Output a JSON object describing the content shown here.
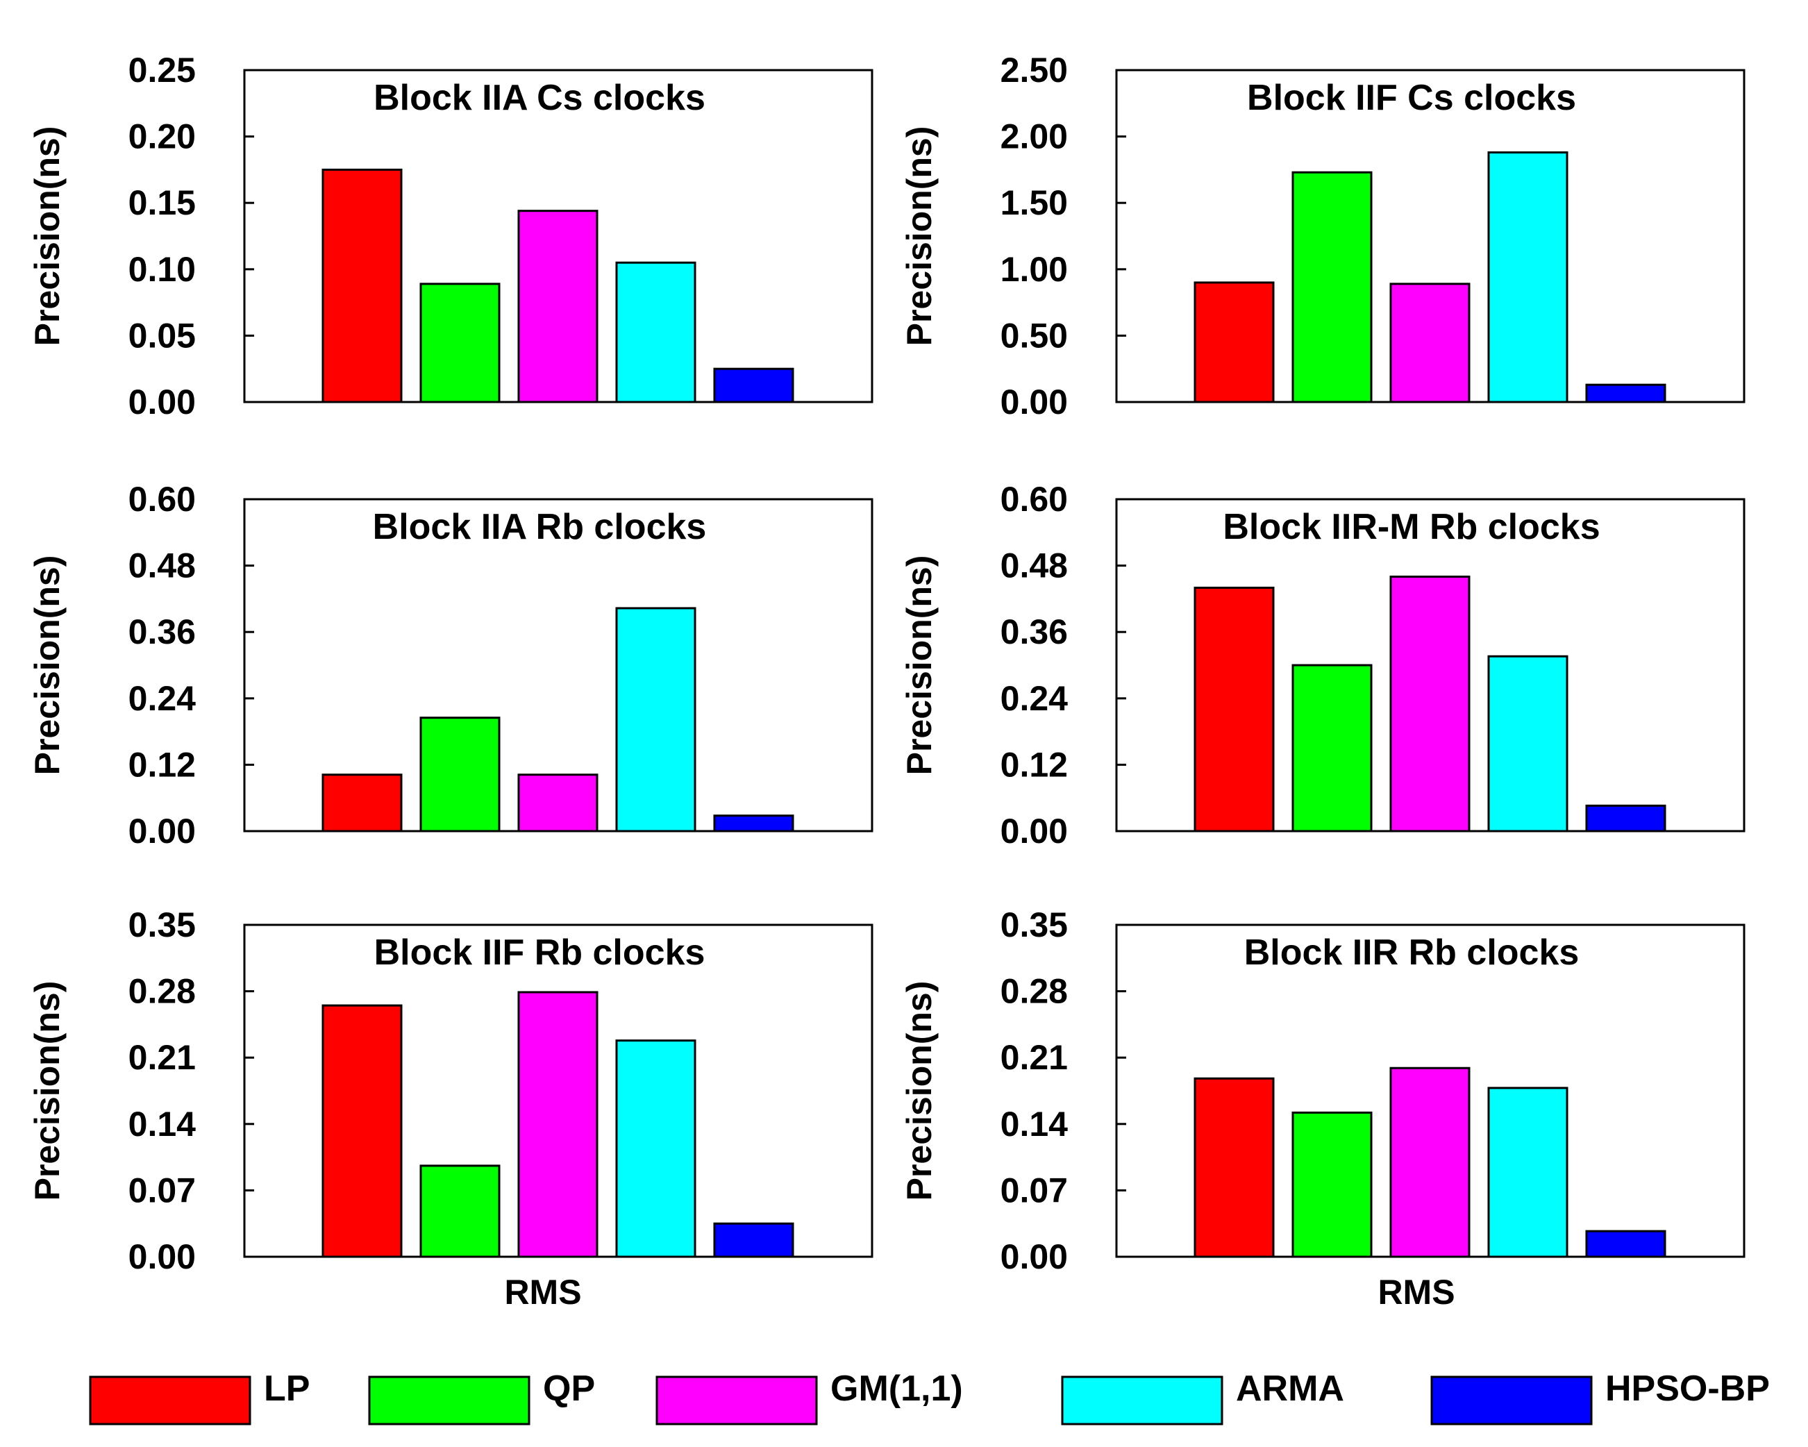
{
  "series_names": [
    "LP",
    "QP",
    "GM(1,1)",
    "ARMA",
    "HPSO-BP"
  ],
  "series_colors": [
    "#ff0000",
    "#00ff00",
    "#ff00ff",
    "#00ffff",
    "#0000ff"
  ],
  "legend": [
    "LP",
    "QP",
    "GM(1,1)",
    "ARMA",
    "HPSO-BP"
  ],
  "x_label": "RMS",
  "chart_data": [
    {
      "type": "bar",
      "title": "Block IIA Cs clocks",
      "xlabel": "",
      "ylabel": "Precision(ns)",
      "ylim": [
        0,
        0.25
      ],
      "yticks": [
        "0.00",
        "0.05",
        "0.10",
        "0.15",
        "0.20",
        "0.25"
      ],
      "categories": [
        "LP",
        "QP",
        "GM(1,1)",
        "ARMA",
        "HPSO-BP"
      ],
      "values": [
        0.175,
        0.089,
        0.144,
        0.105,
        0.025
      ]
    },
    {
      "type": "bar",
      "title": "Block IIF Cs clocks",
      "xlabel": "",
      "ylabel": "Precision(ns)",
      "ylim": [
        0,
        2.5
      ],
      "yticks": [
        "0.00",
        "0.50",
        "1.00",
        "1.50",
        "2.00",
        "2.50"
      ],
      "categories": [
        "LP",
        "QP",
        "GM(1,1)",
        "ARMA",
        "HPSO-BP"
      ],
      "values": [
        0.9,
        1.73,
        0.89,
        1.88,
        0.13
      ]
    },
    {
      "type": "bar",
      "title": "Block IIA Rb clocks",
      "xlabel": "",
      "ylabel": "Precision(ns)",
      "ylim": [
        0,
        0.6
      ],
      "yticks": [
        "0.00",
        "0.12",
        "0.24",
        "0.36",
        "0.48",
        "0.60"
      ],
      "categories": [
        "LP",
        "QP",
        "GM(1,1)",
        "ARMA",
        "HPSO-BP"
      ],
      "values": [
        0.102,
        0.205,
        0.102,
        0.403,
        0.028
      ]
    },
    {
      "type": "bar",
      "title": "Block IIR-M Rb clocks",
      "xlabel": "",
      "ylabel": "Precision(ns)",
      "ylim": [
        0,
        0.6
      ],
      "yticks": [
        "0.00",
        "0.12",
        "0.24",
        "0.36",
        "0.48",
        "0.60"
      ],
      "categories": [
        "LP",
        "QP",
        "GM(1,1)",
        "ARMA",
        "HPSO-BP"
      ],
      "values": [
        0.44,
        0.3,
        0.46,
        0.316,
        0.046
      ]
    },
    {
      "type": "bar",
      "title": "Block IIF Rb clocks",
      "xlabel": "RMS",
      "ylabel": "Precision(ns)",
      "ylim": [
        0,
        0.35
      ],
      "yticks": [
        "0.00",
        "0.07",
        "0.14",
        "0.21",
        "0.28",
        "0.35"
      ],
      "categories": [
        "LP",
        "QP",
        "GM(1,1)",
        "ARMA",
        "HPSO-BP"
      ],
      "values": [
        0.265,
        0.096,
        0.279,
        0.228,
        0.035
      ]
    },
    {
      "type": "bar",
      "title": "Block IIR Rb clocks",
      "xlabel": "RMS",
      "ylabel": "Precision(ns)",
      "ylim": [
        0,
        0.35
      ],
      "yticks": [
        "0.00",
        "0.07",
        "0.14",
        "0.21",
        "0.28",
        "0.35"
      ],
      "categories": [
        "LP",
        "QP",
        "GM(1,1)",
        "ARMA",
        "HPSO-BP"
      ],
      "values": [
        0.188,
        0.152,
        0.199,
        0.178,
        0.027
      ]
    }
  ]
}
